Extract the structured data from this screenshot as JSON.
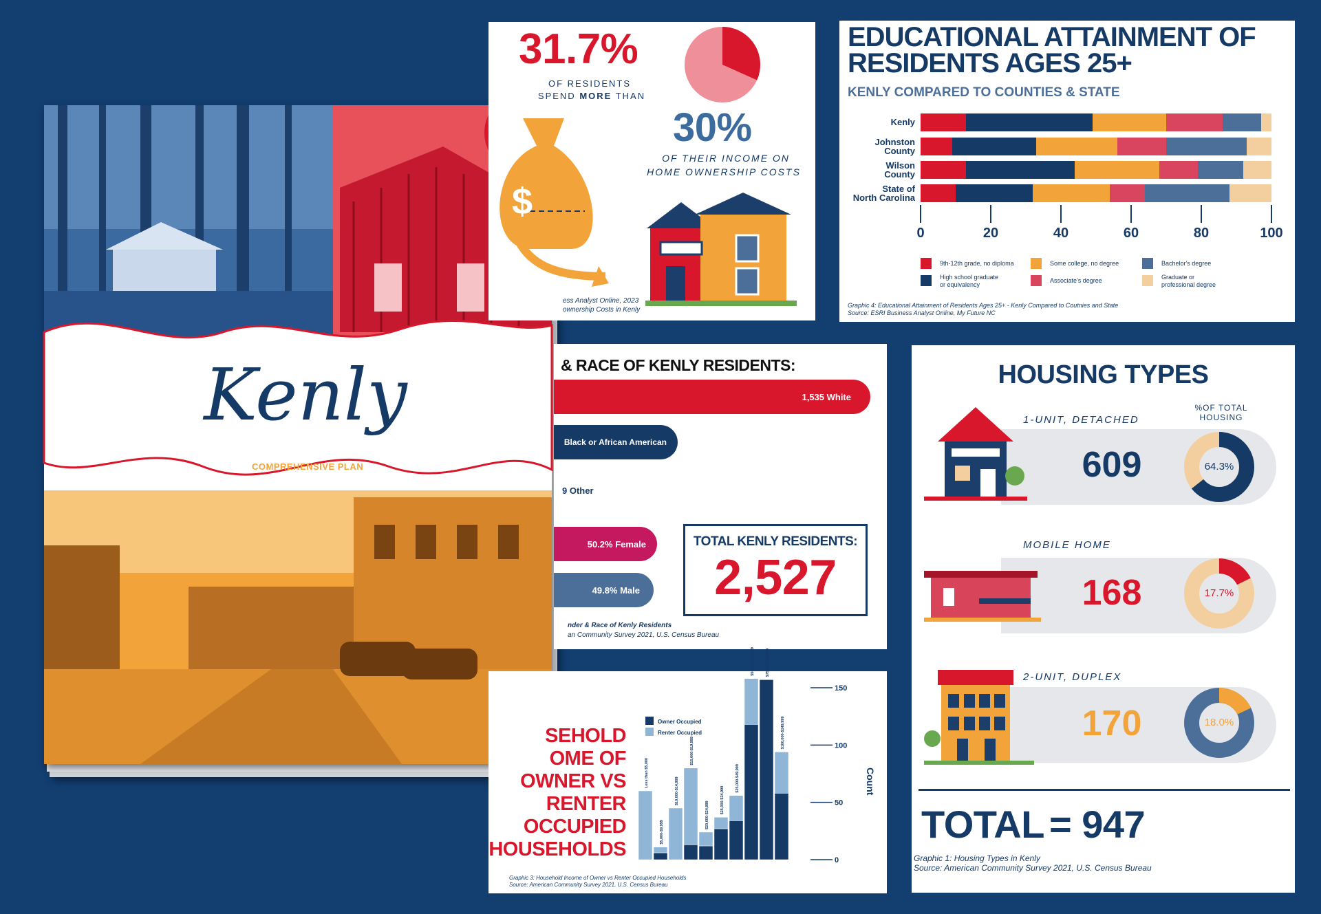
{
  "cover": {
    "title": "Kenly",
    "subtitle": "COMPREHENSIVE PLAN"
  },
  "cost_panel": {
    "stat1": "31.7%",
    "stat1_line1": "OF RESIDENTS",
    "stat1_line2_a": "SPEND ",
    "stat1_line2_b": "MORE",
    "stat1_line2_c": " THAN",
    "stat2": "30%",
    "stat2_line1": "OF THEIR INCOME ON",
    "stat2_line2": "HOME OWNERSHIP COSTS",
    "caption1": "ess Analyst Online, 2023",
    "caption2": "ownership Costs in Kenly",
    "pie_fraction": 0.317,
    "dollar": "$"
  },
  "education": {
    "title_line1": "EDUCATIONAL ATTAINMENT OF",
    "title_line2": "RESIDENTS AGES 25+",
    "subtitle": "KENLY COMPARED TO COUNTIES & STATE",
    "caption1": "Graphic 4: Educational Attainment of Residents Ages 25+ - Kenly Compared to Coutnies and State",
    "caption2": "Source: ESRI Business Analyst Online, My Future NC",
    "chart_data": {
      "type": "bar",
      "orientation": "horizontal-stacked",
      "categories": [
        "Kenly",
        "Johnston County",
        "Wilson County",
        "State of North Carolina"
      ],
      "category_lines": [
        [
          "Kenly"
        ],
        [
          "Johnston",
          "County"
        ],
        [
          "Wilson",
          "County"
        ],
        [
          "State of",
          "North Carolina"
        ]
      ],
      "xticks": [
        "0",
        "20",
        "40",
        "60",
        "80",
        "100"
      ],
      "xlim": [
        0,
        100
      ],
      "series": [
        {
          "name": "9th-12th grade, no diploma",
          "color": "#d8172c",
          "values": [
            13,
            9,
            13,
            10
          ]
        },
        {
          "name": "High school graduate or equivalency",
          "color": "#153a66",
          "values": [
            36,
            24,
            31,
            22
          ]
        },
        {
          "name": "Some college, no degree",
          "color": "#f2a33a",
          "values": [
            21,
            23,
            24,
            22
          ]
        },
        {
          "name": "Associate's degree",
          "color": "#d9455f",
          "values": [
            16,
            14,
            11,
            10
          ]
        },
        {
          "name": "Bachelor's degree",
          "color": "#4c6f99",
          "values": [
            11,
            23,
            13,
            24
          ]
        },
        {
          "name": "Graduate or professional degree",
          "color": "#f3cfa0",
          "values": [
            3,
            7,
            8,
            12
          ]
        }
      ],
      "legend": [
        {
          "lines": [
            "9th-12th grade, no diploma"
          ],
          "color": "#d8172c"
        },
        {
          "lines": [
            "High school graduate",
            "or equivalency"
          ],
          "color": "#153a66"
        },
        {
          "lines": [
            "Some college, no degree"
          ],
          "color": "#f2a33a"
        },
        {
          "lines": [
            "Associate's degree"
          ],
          "color": "#d9455f"
        },
        {
          "lines": [
            "Bachelor's degree"
          ],
          "color": "#4c6f99"
        },
        {
          "lines": [
            "Graduate or",
            "professional degree"
          ],
          "color": "#f3cfa0"
        }
      ]
    }
  },
  "race": {
    "title": "& RACE OF KENLY RESIDENTS:",
    "white": "1,535 White",
    "black": "Black or African American",
    "other": "9 Other",
    "female": "50.2% Female",
    "male": "49.8% Male",
    "total_label": "TOTAL KENLY RESIDENTS:",
    "total_value": "2,527",
    "caption1": "nder & Race of Kenly Residents",
    "caption2": "an Community Survey 2021, U.S. Census Bureau"
  },
  "income": {
    "title_lines": [
      "SEHOLD",
      "OME OF",
      "OWNER VS",
      "RENTER",
      "OCCUPIED",
      "HOUSEHOLDS"
    ],
    "caption1": "Graphic 3: Household Income of Owner vs Renter Occupied Households",
    "caption2": "Source: American Community Survey 2021, U.S. Census Bureau",
    "chart_data": {
      "type": "bar",
      "orientation": "vertical-stacked",
      "categories": [
        "Less than $5,000",
        "$5,000-$9,999",
        "$10,000-$14,999",
        "$15,000-$19,999",
        "$20,000-$24,999",
        "$25,000-$34,999",
        "$35,000-$49,999",
        "$50,000-$74,999",
        "$75,000-$99,999",
        "$100,000-$149,999"
      ],
      "series": [
        {
          "name": "Owner Occupied",
          "color": "#153a66",
          "values": [
            0,
            6,
            0,
            13,
            12,
            27,
            34,
            118,
            157,
            58
          ]
        },
        {
          "name": "Renter Occupied",
          "color": "#8fb6d6",
          "values": [
            60,
            5,
            45,
            67,
            12,
            10,
            22,
            40,
            0,
            36
          ]
        }
      ],
      "ylabel": "Count",
      "yticks": [
        "0",
        "50",
        "100",
        "150"
      ],
      "ylim": [
        0,
        150
      ]
    }
  },
  "housing": {
    "title": "HOUSING TYPES",
    "pct_header_line1": "%OF TOTAL",
    "pct_header_line2": "HOUSING",
    "types": [
      {
        "label": "1-UNIT, DETACHED",
        "count": "609",
        "pct": "64.3%",
        "fraction": 0.643,
        "color": "#153a66"
      },
      {
        "label": "MOBILE HOME",
        "count": "168",
        "pct": "17.7%",
        "fraction": 0.177,
        "color": "#d8172c"
      },
      {
        "label": "2-UNIT, DUPLEX",
        "count": "170",
        "pct": "18.0%",
        "fraction": 0.18,
        "color": "#f2a33a"
      }
    ],
    "total_label": "TOTAL",
    "total_value": "= 947",
    "caption1": "Graphic 1: Housing Types in Kenly",
    "caption2": "Source: American Community Survey 2021, U.S. Census Bureau"
  }
}
